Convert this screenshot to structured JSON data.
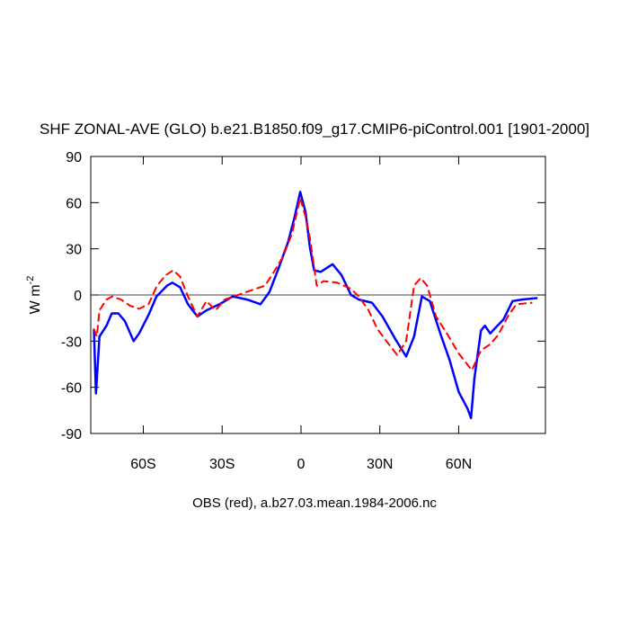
{
  "chart_data": {
    "type": "line",
    "title": "SHF ZONAL-AVE (GLO) b.e21.B1850.f09_g17.CMIP6-piControl.001 [1901-2000]",
    "ylabel": {
      "text": "W m",
      "superscript": "-2"
    },
    "footnote": "OBS (red), a.b27.03.mean.1984-2006.nc",
    "xlim": [
      -80,
      93
    ],
    "ylim": [
      -90,
      90
    ],
    "xticks": [
      {
        "value": -60,
        "label": "60S"
      },
      {
        "value": -30,
        "label": "30S"
      },
      0,
      {
        "value": 30,
        "label": "30N"
      },
      {
        "value": 60,
        "label": "60N"
      }
    ],
    "yticks": [
      -90,
      -60,
      -30,
      0,
      30,
      60,
      90
    ],
    "reference_line": 0,
    "series": [
      {
        "color": "#0000ff",
        "linestyle": "solid",
        "x": [
          -78.8,
          -78,
          -76.7,
          -74,
          -72,
          -69.5,
          -67,
          -63.7,
          -61.6,
          -58,
          -55,
          -51,
          -49,
          -46,
          -43,
          -39.4,
          -36,
          -31,
          -26,
          -20.5,
          -15.4,
          -12,
          -8.6,
          -5,
          -2.4,
          -0.3,
          1.7,
          3.4,
          5,
          7.5,
          12,
          15.4,
          19,
          22,
          27,
          31,
          36,
          40,
          43,
          46,
          49,
          53,
          56.5,
          60,
          63.4,
          64.7,
          66,
          68.5,
          70,
          72,
          73.6,
          77,
          80.5,
          84,
          90
        ],
        "values": [
          -22,
          -64,
          -27,
          -20,
          -12,
          -12,
          -17,
          -30,
          -25,
          -13,
          -1,
          6,
          8,
          5,
          -6,
          -14,
          -10,
          -6,
          -1,
          -3,
          -6,
          2,
          17,
          34,
          51,
          67,
          54,
          31,
          16,
          15,
          20,
          13,
          0,
          -3,
          -5,
          -14,
          -29,
          -40,
          -27,
          -1,
          -4,
          -25,
          -42,
          -63,
          -74,
          -80,
          -54,
          -23,
          -20,
          -25,
          -22,
          -16,
          -4,
          -3,
          -2
        ]
      },
      {
        "color": "#ff0000",
        "linestyle": "dashed",
        "x": [
          -78.8,
          -77.7,
          -76.7,
          -74,
          -71.9,
          -68.5,
          -65,
          -61.6,
          -58,
          -54.8,
          -51.4,
          -48.6,
          -46,
          -43,
          -39.4,
          -36,
          -32.5,
          -29,
          -24,
          -19,
          -13.7,
          -10.3,
          -6.8,
          -3.4,
          -0.3,
          1.7,
          3.4,
          6,
          8.6,
          13.7,
          19,
          22,
          25.7,
          29,
          32.5,
          36.6,
          40,
          43,
          45.5,
          48,
          51.4,
          55.5,
          60,
          65,
          68.5,
          72,
          75,
          79,
          82,
          88
        ],
        "values": [
          -22,
          -27,
          -10,
          -3,
          -1,
          -3,
          -7,
          -9,
          -6,
          6,
          13,
          16,
          12,
          -1,
          -14,
          -4,
          -10,
          -3,
          0,
          3,
          6,
          15,
          25,
          40,
          63,
          51,
          37,
          6,
          9,
          8,
          4,
          -1,
          -10,
          -22,
          -30,
          -39,
          -30,
          6,
          11,
          6,
          -14,
          -25,
          -38,
          -49,
          -36,
          -32,
          -26,
          -13,
          -6,
          -5
        ]
      }
    ]
  }
}
